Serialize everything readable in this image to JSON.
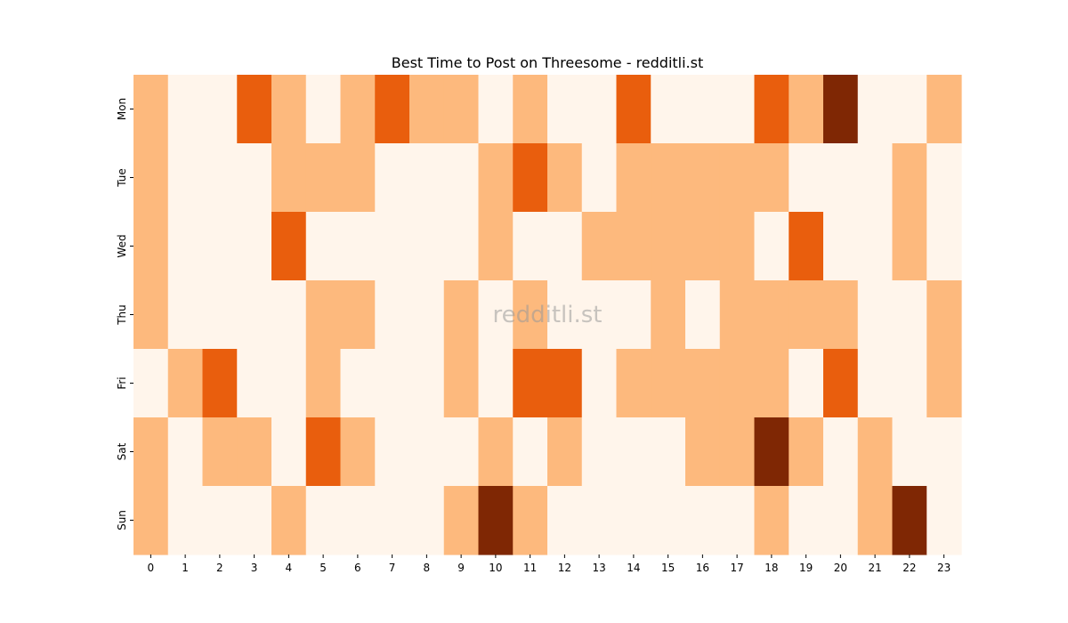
{
  "chart_data": {
    "type": "heatmap",
    "title": "Best Time to Post on Threesome - redditli.st",
    "watermark": "redditli.st",
    "x_categories": [
      "0",
      "1",
      "2",
      "3",
      "4",
      "5",
      "6",
      "7",
      "8",
      "9",
      "10",
      "11",
      "12",
      "13",
      "14",
      "15",
      "16",
      "17",
      "18",
      "19",
      "20",
      "21",
      "22",
      "23"
    ],
    "y_categories": [
      "Mon",
      "Tue",
      "Wed",
      "Thu",
      "Fri",
      "Sat",
      "Sun"
    ],
    "levels": [
      0,
      1,
      2,
      3
    ],
    "colors": [
      "#fff5eb",
      "#fdb97d",
      "#e95e0d",
      "#7f2704"
    ],
    "values": [
      [
        1,
        0,
        0,
        2,
        1,
        0,
        1,
        2,
        1,
        1,
        0,
        1,
        0,
        0,
        2,
        0,
        0,
        0,
        2,
        1,
        3,
        0,
        0,
        1
      ],
      [
        1,
        0,
        0,
        0,
        1,
        1,
        1,
        0,
        0,
        0,
        1,
        2,
        1,
        0,
        1,
        1,
        1,
        1,
        1,
        0,
        0,
        0,
        1,
        0
      ],
      [
        1,
        0,
        0,
        0,
        2,
        0,
        0,
        0,
        0,
        0,
        1,
        0,
        0,
        1,
        1,
        1,
        1,
        1,
        0,
        2,
        0,
        0,
        1,
        0
      ],
      [
        1,
        0,
        0,
        0,
        0,
        1,
        1,
        0,
        0,
        1,
        0,
        1,
        0,
        0,
        0,
        1,
        0,
        1,
        1,
        1,
        1,
        0,
        0,
        1
      ],
      [
        0,
        1,
        2,
        0,
        0,
        1,
        0,
        0,
        0,
        1,
        0,
        2,
        2,
        0,
        1,
        1,
        1,
        1,
        1,
        0,
        2,
        0,
        0,
        1
      ],
      [
        1,
        0,
        1,
        1,
        0,
        2,
        1,
        0,
        0,
        0,
        1,
        0,
        1,
        0,
        0,
        0,
        1,
        1,
        3,
        1,
        0,
        1,
        0,
        0
      ],
      [
        1,
        0,
        0,
        0,
        1,
        0,
        0,
        0,
        0,
        1,
        3,
        1,
        0,
        0,
        0,
        0,
        0,
        0,
        1,
        0,
        0,
        1,
        3,
        0
      ]
    ]
  }
}
